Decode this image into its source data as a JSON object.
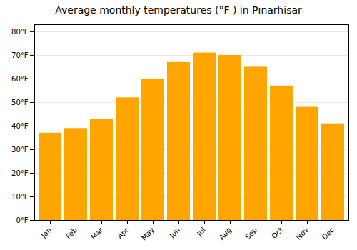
{
  "chart_data": {
    "type": "bar",
    "title": "Average monthly temperatures (°F ) in Pınarhisar",
    "categories": [
      "Jan",
      "Feb",
      "Mar",
      "Apr",
      "May",
      "Jun",
      "Jul",
      "Aug",
      "Sep",
      "Oct",
      "Nov",
      "Dec"
    ],
    "values": [
      37,
      39,
      43,
      52,
      60,
      67,
      71,
      70,
      65,
      57,
      48,
      41
    ],
    "color": "#FFA500",
    "ylim": [
      0,
      83
    ],
    "yticks": [
      {
        "value": 0,
        "label": "0°F"
      },
      {
        "value": 10,
        "label": "10°F"
      },
      {
        "value": 20,
        "label": "20°F"
      },
      {
        "value": 30,
        "label": "30°F"
      },
      {
        "value": 40,
        "label": "40°F"
      },
      {
        "value": 50,
        "label": "50°F"
      },
      {
        "value": 60,
        "label": "60°F"
      },
      {
        "value": 70,
        "label": "70°F"
      },
      {
        "value": 80,
        "label": "80°F"
      }
    ],
    "grid": true
  }
}
